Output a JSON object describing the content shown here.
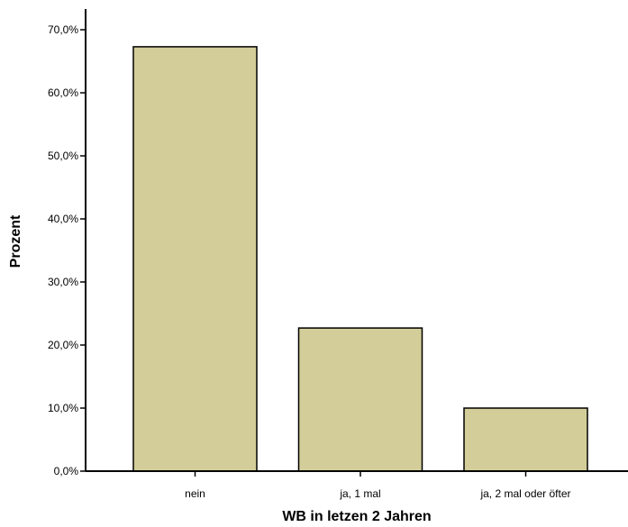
{
  "chart_data": {
    "type": "bar",
    "title": "",
    "xlabel": "WB in letzen 2 Jahren",
    "ylabel": "Prozent",
    "categories": [
      "nein",
      "ja, 1 mal",
      "ja, 2 mal oder öfter"
    ],
    "values": [
      67.3,
      22.7,
      10.0
    ],
    "ylim": [
      0,
      70
    ],
    "yticks": [
      0,
      10,
      20,
      30,
      40,
      50,
      60,
      70
    ],
    "ytick_labels": [
      "0,0%",
      "10,0%",
      "20,0%",
      "30,0%",
      "40,0%",
      "50,0%",
      "60,0%",
      "70,0%"
    ],
    "grid": false,
    "legend": "none",
    "colors": {
      "bar_fill": "#d3cd99",
      "bar_stroke": "#000000",
      "background": "#ffffff",
      "axis": "#000000"
    }
  }
}
